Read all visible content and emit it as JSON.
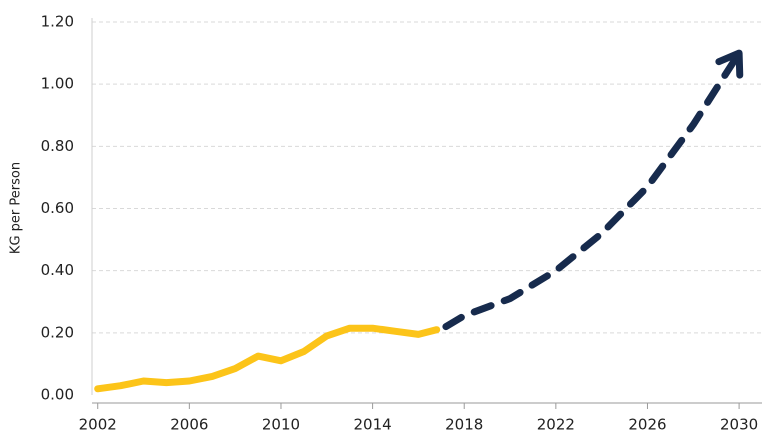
{
  "chart_data": {
    "type": "line",
    "y_label": "KG per Person",
    "series": [
      {
        "color": "#fcc419",
        "dashed": false,
        "arrow": false,
        "x": [
          2002,
          2003,
          2004,
          2005,
          2006,
          2007,
          2008,
          2009,
          2010,
          2011,
          2012,
          2013,
          2014,
          2015,
          2016,
          2016.8
        ],
        "values": [
          0.02,
          0.03,
          0.045,
          0.04,
          0.045,
          0.06,
          0.085,
          0.125,
          0.11,
          0.14,
          0.19,
          0.215,
          0.215,
          0.205,
          0.195,
          0.21
        ]
      },
      {
        "color": "#172b4d",
        "dashed": true,
        "arrow": true,
        "x": [
          2017.2,
          2018,
          2020,
          2022,
          2024,
          2026,
          2028,
          2030
        ],
        "values": [
          0.22,
          0.255,
          0.31,
          0.4,
          0.52,
          0.67,
          0.87,
          1.1
        ]
      }
    ],
    "xlim": [
      2001.75,
      2031
    ],
    "xticks": [
      2002,
      2006,
      2010,
      2014,
      2018,
      2022,
      2026,
      2030
    ],
    "ylim": [
      0,
      1.2
    ],
    "yticks": [
      {
        "value": 0,
        "label": "0.00"
      },
      {
        "value": 0.2,
        "label": "0.20"
      },
      {
        "value": 0.4,
        "label": "0.40"
      },
      {
        "value": 0.6,
        "label": "0.60"
      },
      {
        "value": 0.8,
        "label": "0.80"
      },
      {
        "value": 1.0,
        "label": "1.00"
      },
      {
        "value": 1.2,
        "label": "1.20"
      }
    ],
    "grid": true
  }
}
